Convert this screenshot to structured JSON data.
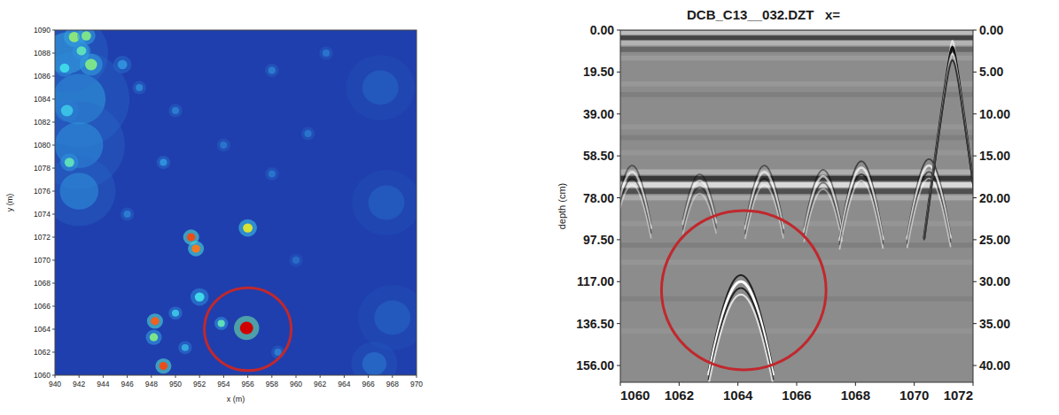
{
  "chart_data": [
    {
      "type": "heatmap",
      "xlabel": "x (m)",
      "ylabel": "y (m)",
      "xlim": [
        940,
        970
      ],
      "ylim": [
        1060,
        1090
      ],
      "xticks": [
        940,
        942,
        944,
        946,
        948,
        950,
        952,
        954,
        956,
        958,
        960,
        962,
        964,
        966,
        968,
        970
      ],
      "yticks": [
        1060,
        1062,
        1064,
        1066,
        1068,
        1070,
        1072,
        1074,
        1076,
        1078,
        1080,
        1082,
        1084,
        1086,
        1088,
        1090
      ],
      "value_range": [
        0,
        1
      ],
      "background_value": 0.15,
      "anomalies": [
        {
          "x": 942,
          "y": 1084,
          "value": 0.38,
          "radius": 2.2
        },
        {
          "x": 942,
          "y": 1080,
          "value": 0.36,
          "radius": 2.0
        },
        {
          "x": 942,
          "y": 1076,
          "value": 0.36,
          "radius": 1.6
        },
        {
          "x": 941,
          "y": 1088,
          "value": 0.4,
          "radius": 1.8
        },
        {
          "x": 967,
          "y": 1085,
          "value": 0.25,
          "radius": 1.5
        },
        {
          "x": 967.5,
          "y": 1075,
          "value": 0.25,
          "radius": 1.5
        },
        {
          "x": 968,
          "y": 1065,
          "value": 0.25,
          "radius": 1.5
        },
        {
          "x": 966.5,
          "y": 1061,
          "value": 0.3,
          "radius": 1.0
        },
        {
          "x": 941.6,
          "y": 1089.4,
          "value": 0.62,
          "radius": 0.45
        },
        {
          "x": 942.6,
          "y": 1089.5,
          "value": 0.6,
          "radius": 0.4
        },
        {
          "x": 942.2,
          "y": 1088.2,
          "value": 0.55,
          "radius": 0.4
        },
        {
          "x": 943.0,
          "y": 1087.0,
          "value": 0.6,
          "radius": 0.5
        },
        {
          "x": 940.8,
          "y": 1086.7,
          "value": 0.5,
          "radius": 0.4
        },
        {
          "x": 941.0,
          "y": 1083.0,
          "value": 0.45,
          "radius": 0.5
        },
        {
          "x": 941.2,
          "y": 1078.5,
          "value": 0.55,
          "radius": 0.4
        },
        {
          "x": 945.6,
          "y": 1087,
          "value": 0.35,
          "radius": 0.4
        },
        {
          "x": 947,
          "y": 1085,
          "value": 0.32,
          "radius": 0.3
        },
        {
          "x": 950,
          "y": 1083,
          "value": 0.3,
          "radius": 0.3
        },
        {
          "x": 954,
          "y": 1080,
          "value": 0.28,
          "radius": 0.3
        },
        {
          "x": 958,
          "y": 1086.5,
          "value": 0.3,
          "radius": 0.3
        },
        {
          "x": 961,
          "y": 1081,
          "value": 0.28,
          "radius": 0.3
        },
        {
          "x": 958,
          "y": 1077.5,
          "value": 0.28,
          "radius": 0.3
        },
        {
          "x": 949,
          "y": 1078.5,
          "value": 0.35,
          "radius": 0.3
        },
        {
          "x": 960,
          "y": 1070,
          "value": 0.26,
          "radius": 0.3
        },
        {
          "x": 958.5,
          "y": 1062,
          "value": 0.3,
          "radius": 0.3
        },
        {
          "x": 946,
          "y": 1074,
          "value": 0.3,
          "radius": 0.3
        },
        {
          "x": 962.5,
          "y": 1088,
          "value": 0.28,
          "radius": 0.3
        },
        {
          "x": 951.3,
          "y": 1072,
          "value": 0.92,
          "radius": 0.35
        },
        {
          "x": 951.7,
          "y": 1071,
          "value": 0.88,
          "radius": 0.35
        },
        {
          "x": 956,
          "y": 1072.8,
          "value": 0.75,
          "radius": 0.4
        },
        {
          "x": 948.3,
          "y": 1064.7,
          "value": 0.9,
          "radius": 0.35
        },
        {
          "x": 948.2,
          "y": 1063.3,
          "value": 0.6,
          "radius": 0.35
        },
        {
          "x": 949.0,
          "y": 1060.8,
          "value": 0.92,
          "radius": 0.35
        },
        {
          "x": 952.0,
          "y": 1066.8,
          "value": 0.5,
          "radius": 0.4
        },
        {
          "x": 950.0,
          "y": 1065.4,
          "value": 0.45,
          "radius": 0.3
        },
        {
          "x": 953.8,
          "y": 1064.5,
          "value": 0.55,
          "radius": 0.3
        },
        {
          "x": 950.8,
          "y": 1062.4,
          "value": 0.4,
          "radius": 0.3
        },
        {
          "x": 955.9,
          "y": 1064.1,
          "value": 1.0,
          "radius": 0.55
        }
      ],
      "highlight": {
        "x": 956,
        "y": 1064,
        "rx": 3.6,
        "ry": 3.6,
        "color": "#c0282d"
      }
    },
    {
      "type": "radargram",
      "title": "DCB_C13__032.DZT   x=",
      "ylabel": "depth (cm)",
      "color": "#8c8c8c",
      "xlim": [
        1060,
        1072
      ],
      "xticks": [
        1060,
        1062,
        1064,
        1066,
        1068,
        1070,
        1072
      ],
      "ylim": [
        0,
        163.8
      ],
      "yticks": [
        {
          "value": 0,
          "label": "0.00"
        },
        {
          "value": 19.5,
          "label": "19.50"
        },
        {
          "value": 39,
          "label": "39.00"
        },
        {
          "value": 58.5,
          "label": "58.50"
        },
        {
          "value": 78,
          "label": "78.00"
        },
        {
          "value": 97.5,
          "label": "97.50"
        },
        {
          "value": 117,
          "label": "117.00"
        },
        {
          "value": 136.5,
          "label": "136.50"
        },
        {
          "value": 156,
          "label": "156.00"
        }
      ],
      "y2lim": [
        0,
        42
      ],
      "y2ticks": [
        {
          "value": 0,
          "label": "0.00"
        },
        {
          "value": 5,
          "label": "5.00"
        },
        {
          "value": 10,
          "label": "10.00"
        },
        {
          "value": 15,
          "label": "15.00"
        },
        {
          "value": 20,
          "label": "20.00"
        },
        {
          "value": 25,
          "label": "25.00"
        },
        {
          "value": 30,
          "label": "30.00"
        },
        {
          "value": 35,
          "label": "35.00"
        },
        {
          "value": 40,
          "label": "40.00"
        }
      ],
      "layers": [
        {
          "depth": 1.5,
          "amplitude": 0.5
        },
        {
          "depth": 3.5,
          "amplitude": -0.6
        },
        {
          "depth": 6,
          "amplitude": 0.4
        },
        {
          "depth": 9,
          "amplitude": -0.3
        },
        {
          "depth": 13,
          "amplitude": 0.15
        },
        {
          "depth": 25,
          "amplitude": 0.12
        },
        {
          "depth": 30,
          "amplitude": -0.1
        },
        {
          "depth": 45,
          "amplitude": 0.1
        },
        {
          "depth": 50,
          "amplitude": -0.1
        },
        {
          "depth": 57,
          "amplitude": 0.1
        },
        {
          "depth": 66,
          "amplitude": 0.35
        },
        {
          "depth": 69,
          "amplitude": -0.7
        },
        {
          "depth": 72,
          "amplitude": 0.8
        },
        {
          "depth": 75,
          "amplitude": -0.5
        },
        {
          "depth": 78,
          "amplitude": 0.3
        },
        {
          "depth": 90,
          "amplitude": 0.1
        },
        {
          "depth": 100,
          "amplitude": -0.1
        },
        {
          "depth": 108,
          "amplitude": 0.1
        },
        {
          "depth": 125,
          "amplitude": -0.08
        },
        {
          "depth": 140,
          "amplitude": 0.08
        }
      ],
      "hyperbolas": [
        {
          "x": 1060.4,
          "depth": 66,
          "amplitude": 0.6
        },
        {
          "x": 1062.7,
          "depth": 70,
          "amplitude": 0.5
        },
        {
          "x": 1064.9,
          "depth": 66,
          "amplitude": 0.6
        },
        {
          "x": 1066.9,
          "depth": 68,
          "amplitude": 0.6
        },
        {
          "x": 1068.2,
          "depth": 64,
          "amplitude": 0.7
        },
        {
          "x": 1070.5,
          "depth": 63,
          "amplitude": 0.7
        },
        {
          "x": 1071.3,
          "depth": 8,
          "amplitude": -0.9
        },
        {
          "x": 1064.1,
          "depth": 117,
          "amplitude": 1.0
        }
      ],
      "highlight": {
        "x": 1064.2,
        "y": 121,
        "rx": 2.8,
        "ry": 37,
        "color": "#c0282d"
      }
    }
  ]
}
